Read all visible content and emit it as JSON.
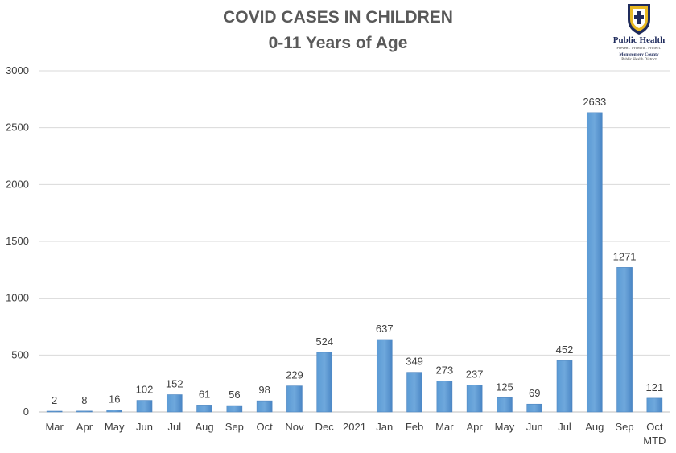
{
  "logo": {
    "name": "Public Health",
    "tagline": "Prevent. Promote. Protect.",
    "county": "Montgomery County",
    "district": "Public Health District"
  },
  "chart_data": {
    "type": "bar",
    "title": "COVID CASES IN CHILDREN",
    "subtitle": "0-11 Years of Age",
    "xlabel": "",
    "ylabel": "",
    "ylim": [
      0,
      3000
    ],
    "yticks": [
      0,
      500,
      1000,
      1500,
      2000,
      2500,
      3000
    ],
    "grid": true,
    "legend": "none",
    "bar_color": "#5b9bd5",
    "categories": [
      "Mar",
      "Apr",
      "May",
      "Jun",
      "Jul",
      "Aug",
      "Sep",
      "Oct",
      "Nov",
      "Dec",
      "2021",
      "Jan",
      "Feb",
      "Mar",
      "Apr",
      "May",
      "Jun",
      "Jul",
      "Aug",
      "Sep",
      "Oct MTD"
    ],
    "values": [
      2,
      8,
      16,
      102,
      152,
      61,
      56,
      98,
      229,
      524,
      null,
      637,
      349,
      273,
      237,
      125,
      69,
      452,
      2633,
      1271,
      121
    ]
  }
}
